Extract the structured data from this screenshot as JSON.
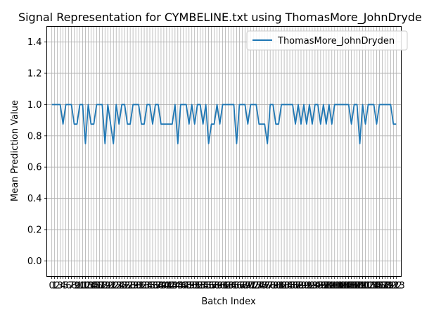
{
  "chart_data": {
    "type": "line",
    "title": "Signal Representation for CYMBELINE.txt using ThomasMore_JohnDryden",
    "xlabel": "Batch Index",
    "ylabel": "Mean Prediction Value",
    "xlim": [
      -1.8,
      124.8
    ],
    "ylim": [
      -0.1,
      1.5
    ],
    "yticks": [
      0.0,
      0.2,
      0.4,
      0.6,
      0.8,
      1.0,
      1.2,
      1.4
    ],
    "ytick_labels": [
      "0.0",
      "0.2",
      "0.4",
      "0.6",
      "0.8",
      "1.0",
      "1.2",
      "1.4"
    ],
    "xticks_every": 1,
    "xtick_first": 0,
    "xtick_last": 123,
    "grid": true,
    "legend_position": "top-right",
    "series": [
      {
        "name": "ThomasMore_JohnDryden",
        "color": "#1f77b4",
        "x_start": 0,
        "values": [
          1,
          1,
          1,
          1,
          0.875,
          1,
          1,
          1,
          0.875,
          0.875,
          1,
          1,
          0.75,
          1,
          0.875,
          0.875,
          1,
          1,
          1,
          0.75,
          1,
          0.875,
          0.75,
          1,
          0.875,
          1,
          1,
          0.875,
          0.875,
          1,
          1,
          1,
          0.875,
          0.875,
          1,
          1,
          0.875,
          1,
          1,
          0.875,
          0.875,
          0.875,
          0.875,
          0.875,
          1,
          0.75,
          1,
          1,
          1,
          0.875,
          1,
          0.875,
          1,
          1,
          0.875,
          1,
          0.75,
          0.875,
          0.875,
          1,
          0.875,
          1,
          1,
          1,
          1,
          1,
          0.75,
          1,
          1,
          1,
          0.875,
          1,
          1,
          1,
          0.875,
          0.875,
          0.875,
          0.75,
          1,
          1,
          0.875,
          0.875,
          1,
          1,
          1,
          1,
          1,
          0.875,
          1,
          0.875,
          1,
          0.875,
          1,
          0.875,
          1,
          1,
          0.875,
          1,
          0.875,
          1,
          0.875,
          1,
          1,
          1,
          1,
          1,
          1,
          0.875,
          1,
          1,
          0.75,
          1,
          0.875,
          1,
          1,
          1,
          0.875,
          1,
          1,
          1,
          1,
          1,
          0.875,
          0.875
        ]
      }
    ]
  }
}
